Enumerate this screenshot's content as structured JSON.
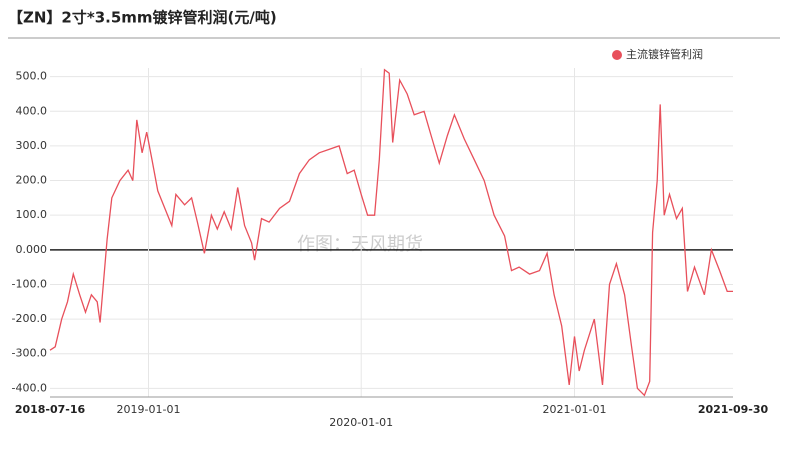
{
  "chart_data": {
    "type": "line",
    "title": "【ZN】2寸*3.5mm镀锌管利润(元/吨)",
    "watermark": "作图：天风期货",
    "legend": "top-right",
    "grid": true,
    "xlim": [
      "2018-07-16",
      "2021-09-30"
    ],
    "xticks": [
      "2018-07-16",
      "2019-01-01",
      "2020-01-01",
      "2021-01-01",
      "2021-09-30"
    ],
    "ylim": [
      -425,
      525
    ],
    "yticks": [
      {
        "value": 500,
        "label": "500.0"
      },
      {
        "value": 400,
        "label": "400.0"
      },
      {
        "value": 300,
        "label": "300.0"
      },
      {
        "value": 200,
        "label": "200.0"
      },
      {
        "value": 100,
        "label": "100.0"
      },
      {
        "value": 0,
        "label": "0.000"
      },
      {
        "value": -100,
        "label": "-100.0"
      },
      {
        "value": -200,
        "label": "-200.0"
      },
      {
        "value": -300,
        "label": "-300.0"
      },
      {
        "value": -400,
        "label": "-400.0"
      }
    ],
    "x": [
      "2018-07-16",
      "2018-07-25",
      "2018-08-05",
      "2018-08-15",
      "2018-08-25",
      "2018-09-05",
      "2018-09-15",
      "2018-09-25",
      "2018-10-05",
      "2018-10-10",
      "2018-10-22",
      "2018-10-30",
      "2018-11-13",
      "2018-11-27",
      "2018-12-05",
      "2018-12-12",
      "2018-12-21",
      "2018-12-29",
      "2019-01-07",
      "2019-01-17",
      "2019-01-29",
      "2019-02-10",
      "2019-02-17",
      "2019-03-04",
      "2019-03-16",
      "2019-03-26",
      "2019-04-07",
      "2019-04-19",
      "2019-04-29",
      "2019-05-11",
      "2019-05-23",
      "2019-06-03",
      "2019-06-15",
      "2019-06-27",
      "2019-07-02",
      "2019-07-14",
      "2019-07-27",
      "2019-08-14",
      "2019-08-31",
      "2019-09-17",
      "2019-10-04",
      "2019-10-21",
      "2019-11-07",
      "2019-11-24",
      "2019-12-08",
      "2019-12-20",
      "2020-01-01",
      "2020-01-12",
      "2020-01-24",
      "2020-02-01",
      "2020-02-10",
      "2020-02-18",
      "2020-02-24",
      "2020-03-07",
      "2020-03-20",
      "2020-04-01",
      "2020-04-18",
      "2020-04-30",
      "2020-05-14",
      "2020-05-28",
      "2020-06-09",
      "2020-06-26",
      "2020-07-13",
      "2020-07-30",
      "2020-08-16",
      "2020-09-03",
      "2020-09-15",
      "2020-09-28",
      "2020-10-16",
      "2020-11-02",
      "2020-11-15",
      "2020-11-27",
      "2020-12-10",
      "2020-12-23",
      "2021-01-01",
      "2021-01-09",
      "2021-01-18",
      "2021-02-04",
      "2021-02-18",
      "2021-03-02",
      "2021-03-14",
      "2021-03-28",
      "2021-04-09",
      "2021-04-19",
      "2021-05-01",
      "2021-05-10",
      "2021-05-15",
      "2021-05-23",
      "2021-05-28",
      "2021-06-04",
      "2021-06-13",
      "2021-06-25",
      "2021-07-05",
      "2021-07-14",
      "2021-07-26",
      "2021-08-12",
      "2021-08-24",
      "2021-09-07",
      "2021-09-20",
      "2021-09-30"
    ],
    "series": [
      {
        "name": "主流镀锌管利润",
        "color": "#e8505b",
        "values": [
          -290,
          -280,
          -200,
          -150,
          -70,
          -130,
          -180,
          -130,
          -150,
          -210,
          30,
          150,
          200,
          230,
          200,
          375,
          280,
          340,
          260,
          170,
          120,
          70,
          160,
          130,
          150,
          80,
          -10,
          100,
          60,
          110,
          60,
          180,
          70,
          20,
          -30,
          90,
          80,
          120,
          140,
          220,
          260,
          280,
          290,
          300,
          220,
          230,
          160,
          100,
          100,
          260,
          520,
          510,
          310,
          490,
          450,
          390,
          400,
          330,
          250,
          330,
          390,
          320,
          260,
          200,
          100,
          40,
          -60,
          -50,
          -70,
          -60,
          -10,
          -130,
          -220,
          -390,
          -250,
          -350,
          -290,
          -200,
          -390,
          -100,
          -40,
          -130,
          -280,
          -400,
          -420,
          -380,
          50,
          200,
          420,
          100,
          160,
          90,
          120,
          -120,
          -50,
          -130,
          0,
          -60,
          -120,
          -120
        ]
      }
    ]
  }
}
